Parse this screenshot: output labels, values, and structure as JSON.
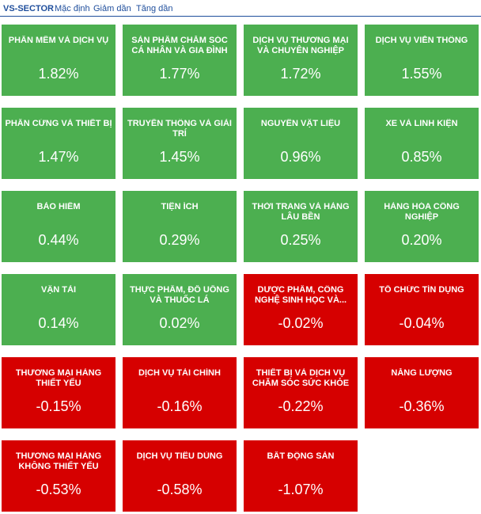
{
  "header": {
    "title": "VS-SECTOR",
    "tabs": [
      "Mặc định",
      "Giảm dần",
      "Tăng dần"
    ]
  },
  "colors": {
    "up": "#4caf50",
    "down": "#d60000",
    "link": "#1f4e9c"
  },
  "sectors": [
    {
      "name": "PHẦN MỀM VÀ DỊCH VỤ",
      "change": "1.82%",
      "trend": "up"
    },
    {
      "name": "SẢN PHẨM CHĂM SÓC CÁ NHÂN VÀ GIA ĐÌNH",
      "change": "1.77%",
      "trend": "up"
    },
    {
      "name": "DỊCH VỤ THƯƠNG MẠI VÀ CHUYÊN NGHIỆP",
      "change": "1.72%",
      "trend": "up"
    },
    {
      "name": "DỊCH VỤ VIỄN THÔNG",
      "change": "1.55%",
      "trend": "up"
    },
    {
      "name": "PHẦN CỨNG VÀ THIẾT BỊ",
      "change": "1.47%",
      "trend": "up"
    },
    {
      "name": "TRUYỀN THÔNG VÀ GIẢI TRÍ",
      "change": "1.45%",
      "trend": "up"
    },
    {
      "name": "NGUYÊN VẬT LIỆU",
      "change": "0.96%",
      "trend": "up"
    },
    {
      "name": "XE VÀ LINH KIỆN",
      "change": "0.85%",
      "trend": "up"
    },
    {
      "name": "BẢO HIỂM",
      "change": "0.44%",
      "trend": "up"
    },
    {
      "name": "TIỆN ÍCH",
      "change": "0.29%",
      "trend": "up"
    },
    {
      "name": "THỜI TRANG VÀ HÀNG LÂU BỀN",
      "change": "0.25%",
      "trend": "up"
    },
    {
      "name": "HÀNG HÓA CÔNG NGHIỆP",
      "change": "0.20%",
      "trend": "up"
    },
    {
      "name": "VẬN TẢI",
      "change": "0.14%",
      "trend": "up"
    },
    {
      "name": "THỰC PHẨM, ĐỒ UỐNG VÀ THUỐC LÁ",
      "change": "0.02%",
      "trend": "up"
    },
    {
      "name": "DƯỢC PHẨM, CÔNG NGHỆ SINH HỌC VÀ...",
      "change": "-0.02%",
      "trend": "down"
    },
    {
      "name": "TỔ CHỨC TÍN DỤNG",
      "change": "-0.04%",
      "trend": "down"
    },
    {
      "name": "THƯƠNG MẠI HÀNG THIẾT YẾU",
      "change": "-0.15%",
      "trend": "down"
    },
    {
      "name": "DỊCH VỤ TÀI CHÍNH",
      "change": "-0.16%",
      "trend": "down"
    },
    {
      "name": "THIẾT BỊ VÀ DỊCH VỤ CHĂM SÓC SỨC KHỎE",
      "change": "-0.22%",
      "trend": "down"
    },
    {
      "name": "NĂNG LƯỢNG",
      "change": "-0.36%",
      "trend": "down"
    },
    {
      "name": "THƯƠNG MẠI HÀNG KHÔNG THIẾT YẾU",
      "change": "-0.53%",
      "trend": "down"
    },
    {
      "name": "DỊCH VỤ TIÊU DÙNG",
      "change": "-0.58%",
      "trend": "down"
    },
    {
      "name": "BẤT ĐỘNG SẢN",
      "change": "-1.07%",
      "trend": "down"
    }
  ]
}
